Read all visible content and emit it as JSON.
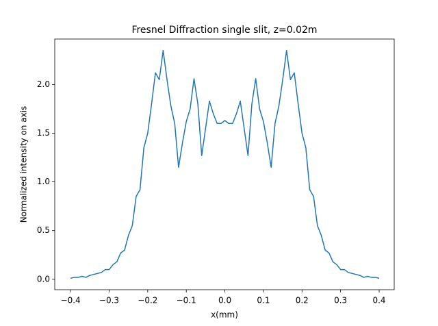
{
  "chart_data": {
    "type": "line",
    "title": "Fresnel Diffraction single slit, z=0.02m",
    "x_label": "x(mm)",
    "y_label": "Normalized intensity on axis",
    "x": [
      -0.4,
      -0.39,
      -0.38,
      -0.37,
      -0.36,
      -0.35,
      -0.34,
      -0.33,
      -0.32,
      -0.31,
      -0.3,
      -0.29,
      -0.28,
      -0.27,
      -0.26,
      -0.25,
      -0.24,
      -0.23,
      -0.22,
      -0.21,
      -0.2,
      -0.19,
      -0.18,
      -0.17,
      -0.16,
      -0.15,
      -0.14,
      -0.13,
      -0.12,
      -0.11,
      -0.1,
      -0.09,
      -0.08,
      -0.07,
      -0.06,
      -0.05,
      -0.04,
      -0.03,
      -0.02,
      -0.01,
      0,
      0.01,
      0.02,
      0.03,
      0.04,
      0.05,
      0.06,
      0.07,
      0.08,
      0.09,
      0.1,
      0.11,
      0.12,
      0.13,
      0.14,
      0.15,
      0.16,
      0.17,
      0.18,
      0.19,
      0.2,
      0.21,
      0.22,
      0.23,
      0.24,
      0.25,
      0.26,
      0.27,
      0.28,
      0.29,
      0.3,
      0.31,
      0.32,
      0.33,
      0.34,
      0.35,
      0.36,
      0.37,
      0.38,
      0.39,
      0.4
    ],
    "series": [
      {
        "name": "intensity",
        "color": "#1f77b4",
        "values": [
          0.01,
          0.02,
          0.02,
          0.03,
          0.02,
          0.04,
          0.05,
          0.06,
          0.07,
          0.1,
          0.1,
          0.15,
          0.18,
          0.27,
          0.3,
          0.45,
          0.55,
          0.85,
          0.92,
          1.35,
          1.5,
          1.8,
          2.12,
          2.05,
          2.35,
          2.05,
          1.78,
          1.6,
          1.15,
          1.4,
          1.62,
          1.75,
          2.06,
          1.8,
          1.27,
          1.55,
          1.83,
          1.7,
          1.6,
          1.6,
          1.63,
          1.6,
          1.6,
          1.7,
          1.83,
          1.55,
          1.27,
          1.8,
          2.06,
          1.75,
          1.62,
          1.4,
          1.15,
          1.6,
          1.78,
          2.05,
          2.35,
          2.05,
          2.12,
          1.8,
          1.5,
          1.35,
          0.92,
          0.85,
          0.55,
          0.45,
          0.3,
          0.27,
          0.18,
          0.15,
          0.1,
          0.1,
          0.07,
          0.06,
          0.05,
          0.04,
          0.02,
          0.03,
          0.02,
          0.02,
          0.01
        ]
      }
    ],
    "xlim": [
      -0.441,
      0.439
    ],
    "ylim": [
      -0.107,
      2.467
    ],
    "xticks": [
      {
        "value": -0.4,
        "label": "−0.4"
      },
      {
        "value": -0.3,
        "label": "−0.3"
      },
      {
        "value": -0.2,
        "label": "−0.2"
      },
      {
        "value": -0.1,
        "label": "−0.1"
      },
      {
        "value": 0,
        "label": "0.0"
      },
      0.1,
      0.2,
      0.3,
      0.4
    ],
    "yticks": [
      {
        "value": 0,
        "label": "0.0"
      },
      0.5,
      {
        "value": 1,
        "label": "1.0"
      },
      1.5,
      {
        "value": 2,
        "label": "2.0"
      }
    ]
  }
}
